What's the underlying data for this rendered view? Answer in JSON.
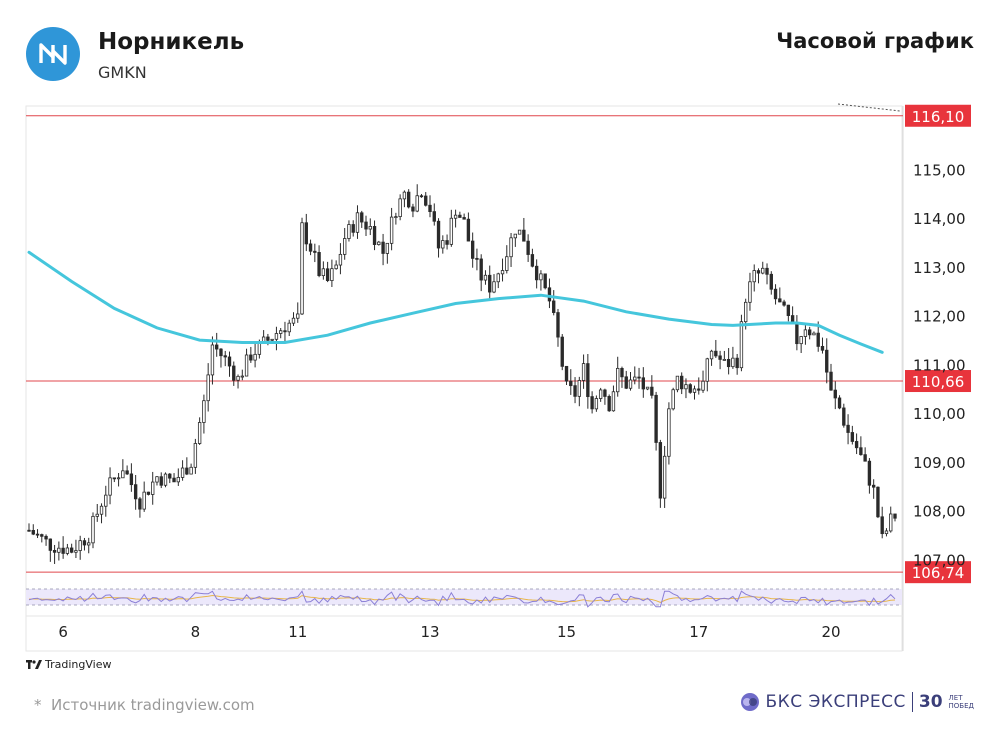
{
  "header": {
    "company_name": "Норникель",
    "ticker": "GMKN",
    "timeframe_label": "Часовой график"
  },
  "footer": {
    "tradingview_label": "TradingView",
    "source_text": "Источник tradingview.com",
    "source_marker": "*",
    "brand_name": "БКС ЭКСПРЕСС",
    "brand_years": "30",
    "brand_sub_line1": "ЛЕТ",
    "brand_sub_line2": "ПОБЕД"
  },
  "colors": {
    "bull": "#2a2a2a",
    "bear": "#2a2a2a",
    "moving_average": "#45c6dc",
    "level_line": "#e0474c",
    "level_label_bg": "#e8343c",
    "rsi_line": "#8b7fd6",
    "rsi_signal": "#e8b64a",
    "rsi_band": "#ece8fb",
    "brand": "#3b3f7a"
  },
  "chart_data": {
    "type": "candlestick",
    "ylim": [
      106.6,
      116.3
    ],
    "y_ticks": [
      "115,00",
      "114,00",
      "113,00",
      "112,00",
      "111,00",
      "110,00",
      "109,00",
      "108,00",
      "107,00"
    ],
    "y_tick_values": [
      115,
      114,
      113,
      112,
      111,
      110,
      109,
      108,
      107
    ],
    "x_ticks": [
      "6",
      "8",
      "11",
      "13",
      "15",
      "17",
      "20"
    ],
    "x_tick_bar_index": [
      8,
      39,
      63,
      94,
      126,
      157,
      188
    ],
    "levels": [
      {
        "value": 116.1,
        "label": "116,10"
      },
      {
        "value": 110.66,
        "label": "110,66"
      },
      {
        "value": 106.74,
        "label": "106,74"
      }
    ],
    "price_path": [
      [
        0,
        107.6
      ],
      [
        5,
        107.3
      ],
      [
        10,
        107.2
      ],
      [
        14,
        107.5
      ],
      [
        18,
        108.4
      ],
      [
        22,
        108.9
      ],
      [
        26,
        108.2
      ],
      [
        30,
        108.7
      ],
      [
        34,
        108.6
      ],
      [
        38,
        109.0
      ],
      [
        41,
        110.2
      ],
      [
        43,
        111.4
      ],
      [
        46,
        111.1
      ],
      [
        49,
        110.7
      ],
      [
        52,
        111.2
      ],
      [
        56,
        111.5
      ],
      [
        60,
        111.8
      ],
      [
        63,
        111.9
      ],
      [
        64,
        113.8
      ],
      [
        66,
        113.4
      ],
      [
        68,
        112.9
      ],
      [
        70,
        112.7
      ],
      [
        72,
        113.0
      ],
      [
        74,
        113.6
      ],
      [
        77,
        114.0
      ],
      [
        80,
        113.8
      ],
      [
        83,
        113.3
      ],
      [
        86,
        114.2
      ],
      [
        88,
        114.5
      ],
      [
        90,
        114.3
      ],
      [
        92,
        114.6
      ],
      [
        94,
        114.2
      ],
      [
        96,
        113.4
      ],
      [
        98,
        113.6
      ],
      [
        100,
        114.2
      ],
      [
        102,
        113.9
      ],
      [
        104,
        113.2
      ],
      [
        106,
        112.8
      ],
      [
        108,
        112.6
      ],
      [
        110,
        112.9
      ],
      [
        112,
        113.3
      ],
      [
        114,
        113.8
      ],
      [
        116,
        113.6
      ],
      [
        118,
        113.1
      ],
      [
        120,
        112.7
      ],
      [
        122,
        112.3
      ],
      [
        124,
        111.5
      ],
      [
        126,
        110.5
      ],
      [
        128,
        110.4
      ],
      [
        130,
        110.9
      ],
      [
        132,
        110.1
      ],
      [
        134,
        110.6
      ],
      [
        136,
        110.2
      ],
      [
        138,
        110.8
      ],
      [
        140,
        110.6
      ],
      [
        143,
        110.7
      ],
      [
        146,
        110.2
      ],
      [
        148,
        108.4
      ],
      [
        150,
        110.1
      ],
      [
        152,
        110.7
      ],
      [
        155,
        110.5
      ],
      [
        158,
        110.6
      ],
      [
        160,
        111.3
      ],
      [
        163,
        111.0
      ],
      [
        166,
        111.1
      ],
      [
        168,
        112.4
      ],
      [
        170,
        112.8
      ],
      [
        172,
        112.9
      ],
      [
        174,
        112.5
      ],
      [
        176,
        112.2
      ],
      [
        178,
        111.9
      ],
      [
        180,
        111.5
      ],
      [
        182,
        111.8
      ],
      [
        184,
        111.6
      ],
      [
        186,
        111.3
      ],
      [
        188,
        110.4
      ],
      [
        190,
        110.1
      ],
      [
        192,
        109.6
      ],
      [
        194,
        109.3
      ],
      [
        196,
        108.9
      ],
      [
        198,
        108.4
      ],
      [
        200,
        107.4
      ],
      [
        202,
        107.8
      ],
      [
        203,
        107.9
      ]
    ],
    "moving_average": [
      [
        0,
        113.3
      ],
      [
        10,
        112.7
      ],
      [
        20,
        112.15
      ],
      [
        30,
        111.75
      ],
      [
        40,
        111.5
      ],
      [
        50,
        111.45
      ],
      [
        60,
        111.45
      ],
      [
        70,
        111.6
      ],
      [
        80,
        111.85
      ],
      [
        90,
        112.05
      ],
      [
        100,
        112.25
      ],
      [
        110,
        112.35
      ],
      [
        120,
        112.42
      ],
      [
        130,
        112.3
      ],
      [
        140,
        112.08
      ],
      [
        150,
        111.93
      ],
      [
        160,
        111.82
      ],
      [
        165,
        111.8
      ],
      [
        175,
        111.85
      ],
      [
        180,
        111.85
      ],
      [
        185,
        111.8
      ],
      [
        190,
        111.6
      ],
      [
        195,
        111.42
      ],
      [
        200,
        111.25
      ]
    ],
    "bar_count": 204
  }
}
